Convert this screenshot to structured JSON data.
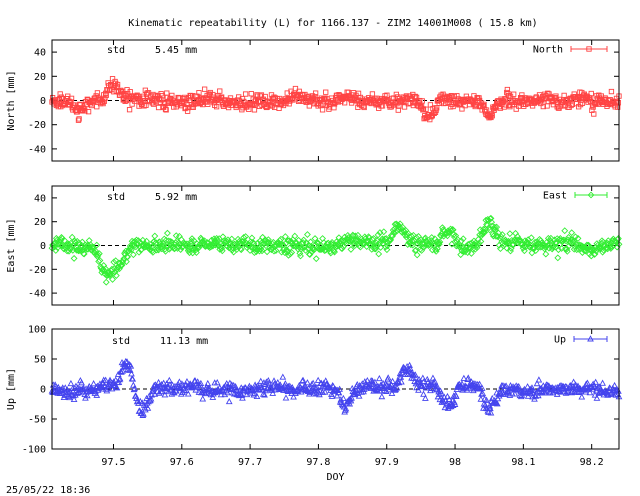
{
  "title": "Kinematic repeatability (L) for 1166.137 - ZIM2 14001M008  ( 15.8 km)",
  "timestamp": "25/05/22 18:36",
  "chart_data": [
    {
      "type": "scatter",
      "series_name": "North",
      "ylabel": "North [mm]",
      "std_label": "std",
      "std_value": "5.45 mm",
      "ylim": [
        -50,
        50
      ],
      "yticks": [
        -40,
        -20,
        0,
        20,
        40
      ],
      "xlim": [
        97.41,
        98.24
      ],
      "xticks": [],
      "xlabel": "",
      "amplitude": 5.45,
      "color": "#ff4444",
      "marker": "square",
      "features": [
        {
          "x": 97.96,
          "y": -12
        },
        {
          "x": 98.05,
          "y": -10
        },
        {
          "x": 97.45,
          "y": -8
        },
        {
          "x": 97.5,
          "y": 12
        }
      ]
    },
    {
      "type": "scatter",
      "series_name": "East",
      "ylabel": "East [mm]",
      "std_label": "std",
      "std_value": "5.92 mm",
      "ylim": [
        -50,
        50
      ],
      "yticks": [
        -40,
        -20,
        0,
        20,
        40
      ],
      "xlim": [
        97.41,
        98.24
      ],
      "xticks": [],
      "xlabel": "",
      "amplitude": 5.92,
      "color": "#33ee33",
      "marker": "diamond",
      "features": [
        {
          "x": 97.49,
          "y": -25
        },
        {
          "x": 97.51,
          "y": -14
        },
        {
          "x": 98.05,
          "y": 18
        },
        {
          "x": 97.92,
          "y": 12
        },
        {
          "x": 97.99,
          "y": 10
        }
      ]
    },
    {
      "type": "scatter",
      "series_name": "Up",
      "ylabel": "Up [mm]",
      "std_label": "std",
      "std_value": "11.13 mm",
      "ylim": [
        -100,
        100
      ],
      "yticks": [
        -100,
        -50,
        0,
        50,
        100
      ],
      "xlim": [
        97.41,
        98.24
      ],
      "xticks": [
        97.5,
        97.6,
        97.7,
        97.8,
        97.9,
        98,
        98.1,
        98.2
      ],
      "xlabel": "DOY",
      "amplitude": 11.13,
      "color": "#4444ee",
      "marker": "triangle",
      "features": [
        {
          "x": 97.52,
          "y": 45
        },
        {
          "x": 97.54,
          "y": -38
        },
        {
          "x": 98.05,
          "y": -35
        },
        {
          "x": 97.93,
          "y": 35
        },
        {
          "x": 97.84,
          "y": -28
        },
        {
          "x": 97.99,
          "y": -30
        }
      ]
    }
  ]
}
